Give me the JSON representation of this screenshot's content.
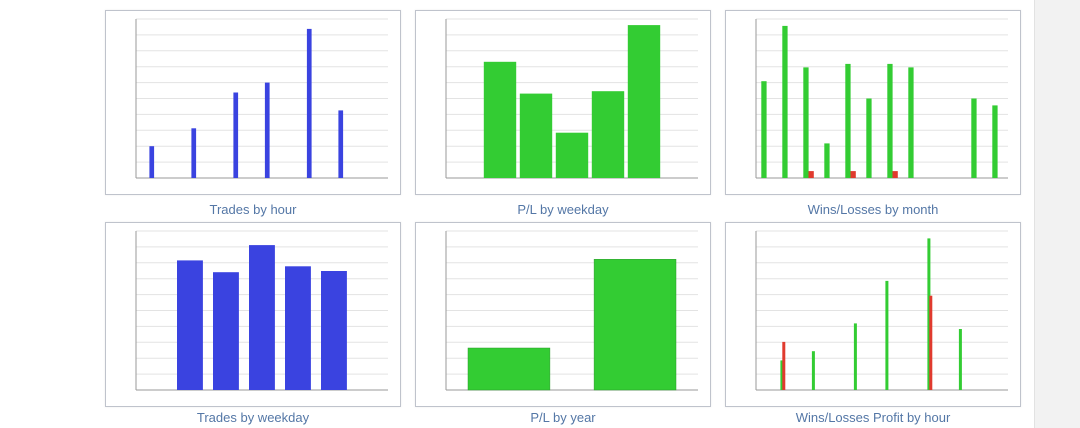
{
  "colors": {
    "blue": "#3a43e0",
    "green": "#33cc33",
    "red": "#e03a2e",
    "grid": "#e3e3e3",
    "axis": "#9a9a9a",
    "frame": "#bfc3cc",
    "caption": "#5477a6"
  },
  "captions": {
    "trades_by_hour": "Trades by hour",
    "pl_by_weekday": "P/L by weekday",
    "wins_losses_by_month": "Wins/Losses by month",
    "trades_by_weekday": "Trades by weekday",
    "pl_by_year": "P/L by year",
    "wins_losses_profit_by_hour": "Wins/Losses Profit by hour"
  },
  "chart_data": [
    {
      "type": "bar",
      "caption": "Trades by hour",
      "categories": [
        "",
        "",
        "",
        "",
        "",
        "",
        "",
        "",
        "",
        "",
        "",
        "",
        "",
        "",
        "",
        "",
        "",
        "",
        "",
        "",
        "",
        "",
        "",
        ""
      ],
      "series": [
        {
          "color": "#3a43e0",
          "values": [
            0,
            8,
            0,
            0,
            0,
            12.5,
            0,
            0,
            0,
            21.5,
            0,
            0,
            24,
            0,
            0,
            0,
            37.5,
            0,
            0,
            17,
            0,
            0,
            0,
            0
          ]
        }
      ],
      "ylim": [
        0,
        40
      ]
    },
    {
      "type": "bar",
      "caption": "P/L by weekday",
      "categories": [
        "",
        "",
        "",
        "",
        "",
        "",
        ""
      ],
      "series": [
        {
          "color": "#33cc33",
          "values": [
            0,
            1900,
            1380,
            740,
            1420,
            2500,
            0
          ]
        }
      ],
      "ylim": [
        0,
        2600
      ]
    },
    {
      "type": "bar",
      "caption": "Wins/Losses by month",
      "categories": [
        "",
        "",
        "",
        "",
        "",
        "",
        "",
        "",
        "",
        "",
        "",
        ""
      ],
      "series": [
        {
          "color": "#33cc33",
          "values": [
            14,
            22,
            16,
            5,
            16.5,
            11.5,
            16.5,
            16,
            0,
            0,
            11.5,
            10.5
          ]
        },
        {
          "color": "#e03a2e",
          "values": [
            0,
            0,
            1,
            0,
            1,
            0,
            1,
            0,
            0,
            0,
            0,
            0
          ]
        }
      ],
      "ylim": [
        0,
        23
      ]
    },
    {
      "type": "bar",
      "caption": "Trades by weekday",
      "categories": [
        "",
        "",
        "",
        "",
        "",
        "",
        ""
      ],
      "series": [
        {
          "color": "#3a43e0",
          "values": [
            0,
            110,
            100,
            123,
            105,
            101,
            0
          ]
        }
      ],
      "ylim": [
        0,
        135
      ]
    },
    {
      "type": "bar",
      "caption": "P/L by year",
      "categories": [
        "",
        ""
      ],
      "series": [
        {
          "color": "#33cc33",
          "values": [
            4750,
            14800
          ],
          "labels": [
            "",
            ""
          ]
        }
      ],
      "ylim": [
        0,
        18000
      ]
    },
    {
      "type": "bar",
      "caption": "Wins/Losses Profit by hour",
      "categories": [
        "",
        "",
        "",
        "",
        "",
        "",
        "",
        "",
        "",
        "",
        "",
        "",
        "",
        "",
        "",
        "",
        "",
        "",
        "",
        "",
        "",
        "",
        "",
        ""
      ],
      "series": [
        {
          "color": "#33cc33",
          "values": [
            0,
            0,
            160,
            0,
            0,
            210,
            0,
            0,
            0,
            360,
            0,
            0,
            590,
            0,
            0,
            0,
            820,
            0,
            0,
            330,
            0,
            0,
            0,
            0
          ]
        },
        {
          "color": "#e03a2e",
          "values": [
            0,
            0,
            260,
            0,
            0,
            0,
            0,
            0,
            0,
            0,
            0,
            0,
            0,
            0,
            0,
            0,
            510,
            0,
            0,
            0,
            0,
            0,
            0,
            0
          ]
        }
      ],
      "ylim": [
        0,
        860
      ]
    }
  ]
}
